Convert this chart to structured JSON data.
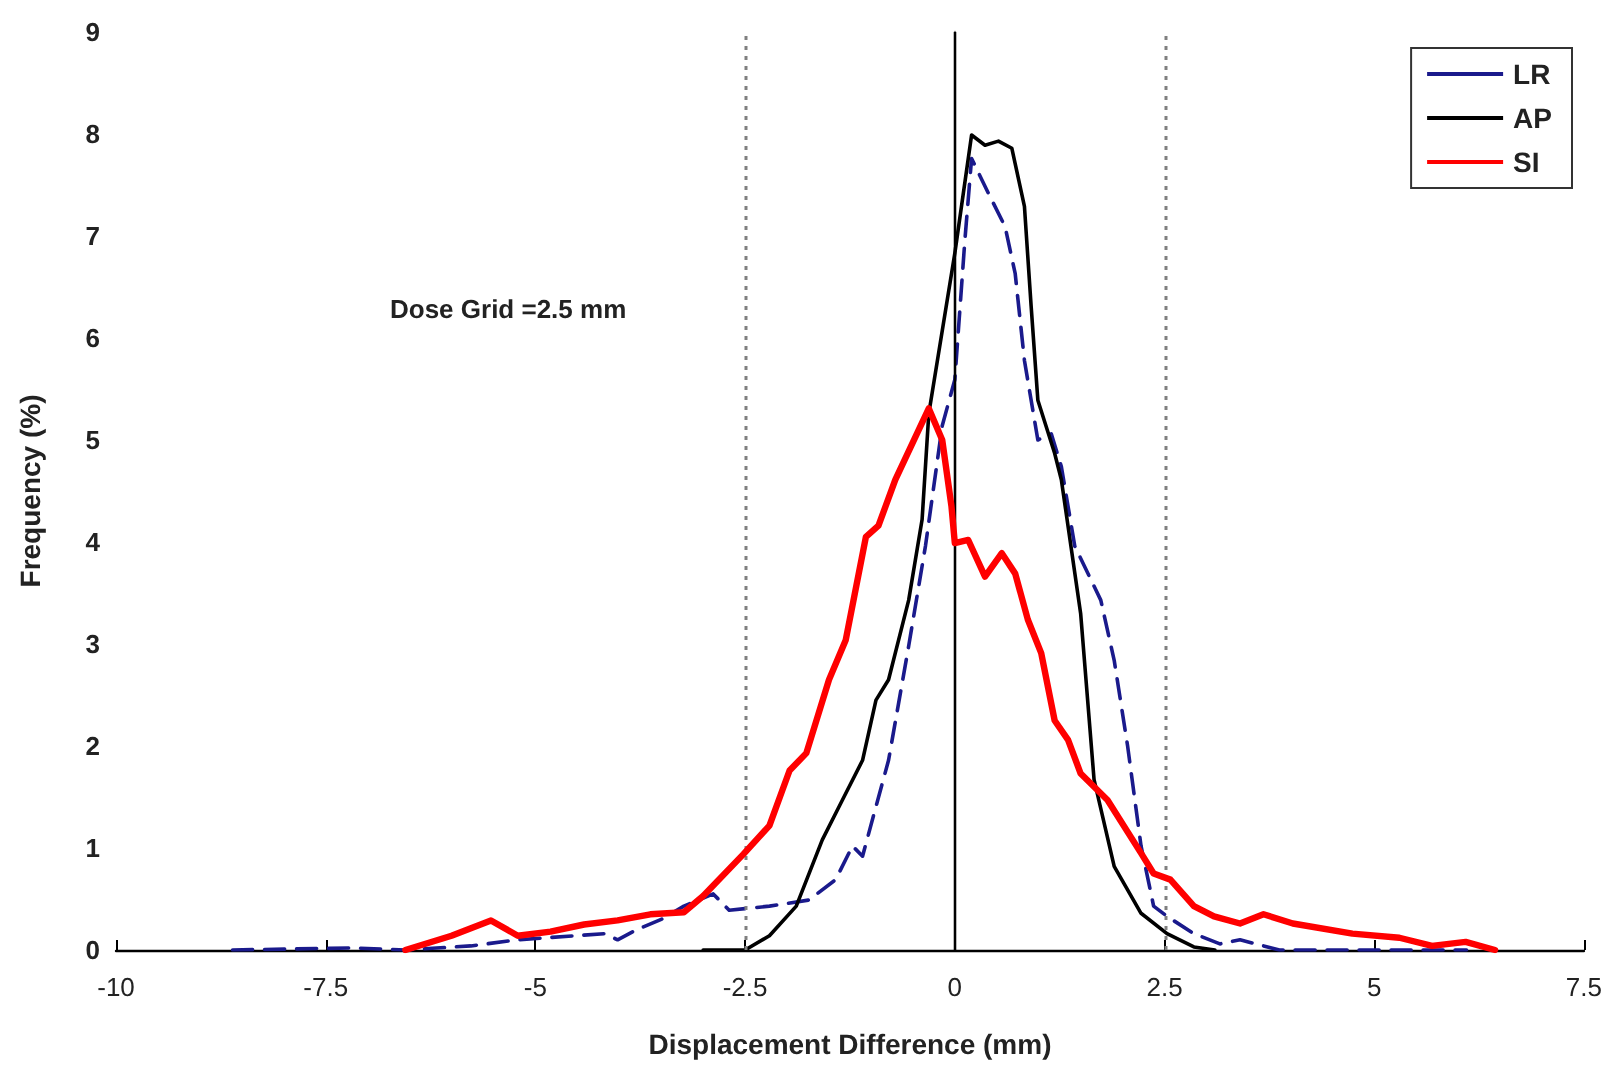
{
  "chart_data": {
    "type": "line",
    "xlabel": "Displacement Difference (mm)",
    "ylabel": "Frequency (%)",
    "xlim": [
      -10,
      7.5
    ],
    "xticks": [
      -10,
      -7.5,
      -5,
      -2.5,
      0,
      2.5,
      5,
      7.5
    ],
    "ylim": [
      0,
      9
    ],
    "yticks": [
      0,
      1,
      2,
      3,
      4,
      5,
      6,
      7,
      8,
      9
    ],
    "grid": false,
    "legend": "top right",
    "marker": "none",
    "annotations": [
      "Dose Grid =2.5 mm"
    ],
    "ref_lines": [
      {
        "axis": "x",
        "value": -2.5,
        "color": "#808080",
        "line_style": "dotted"
      },
      {
        "axis": "x",
        "value": 2.5,
        "color": "#808080",
        "line_style": "dotted"
      },
      {
        "axis": "x",
        "value": 0,
        "color": "#000000",
        "line_style": "solid"
      }
    ],
    "series": [
      {
        "name": "LR",
        "color": "#1a1a8c",
        "line_style": "dashed",
        "x": [
          -8.61,
          -7.18,
          -6.55,
          -5.77,
          -5.21,
          -4.18,
          -4.02,
          -3.79,
          -3.5,
          -3.23,
          -2.88,
          -2.69,
          -2.21,
          -1.74,
          -1.42,
          -1.22,
          -1.1,
          -0.79,
          -0.55,
          -0.35,
          -0.15,
          0.0,
          0.12,
          0.2,
          0.4,
          0.6,
          0.72,
          0.83,
          0.99,
          1.15,
          1.27,
          1.43,
          1.74,
          1.9,
          2.06,
          2.22,
          2.37,
          2.53,
          2.85,
          3.16,
          3.4,
          3.87,
          6.1
        ],
        "values": [
          0,
          0.02,
          0,
          0.04,
          0.1,
          0.16,
          0.1,
          0.2,
          0.3,
          0.43,
          0.55,
          0.39,
          0.43,
          0.49,
          0.69,
          1.02,
          0.92,
          1.86,
          2.98,
          3.96,
          5.14,
          5.59,
          6.96,
          7.76,
          7.42,
          7.09,
          6.63,
          5.78,
          5.0,
          5.06,
          4.74,
          3.96,
          3.43,
          2.84,
          2.0,
          1.02,
          0.43,
          0.33,
          0.16,
          0.06,
          0.1,
          0,
          0
        ]
      },
      {
        "name": "AP",
        "color": "#000000",
        "line_style": "solid",
        "x": [
          -3.0,
          -2.5,
          -2.21,
          -1.89,
          -1.58,
          -1.34,
          -1.1,
          -0.94,
          -0.79,
          -0.55,
          -0.39,
          -0.31,
          0.0,
          0.2,
          0.36,
          0.52,
          0.68,
          0.83,
          0.91,
          0.99,
          1.19,
          1.27,
          1.5,
          1.66,
          1.9,
          2.22,
          2.53,
          2.85,
          3.1
        ],
        "values": [
          0,
          0,
          0.14,
          0.43,
          1.08,
          1.47,
          1.86,
          2.45,
          2.65,
          3.43,
          4.22,
          5.26,
          6.83,
          7.99,
          7.89,
          7.93,
          7.86,
          7.29,
          6.31,
          5.39,
          4.87,
          4.61,
          3.3,
          1.67,
          0.82,
          0.36,
          0.16,
          0.03,
          0
        ]
      },
      {
        "name": "SI",
        "color": "#ff0000",
        "line_style": "solid",
        "x": [
          -6.55,
          -6.0,
          -5.53,
          -5.21,
          -4.82,
          -4.42,
          -4.02,
          -3.63,
          -3.23,
          -3.0,
          -2.52,
          -2.21,
          -1.97,
          -1.77,
          -1.5,
          -1.3,
          -1.06,
          -0.91,
          -0.71,
          -0.31,
          -0.15,
          -0.04,
          0.0,
          0.16,
          0.36,
          0.56,
          0.72,
          0.87,
          1.03,
          1.19,
          1.35,
          1.5,
          1.82,
          2.22,
          2.37,
          2.57,
          2.85,
          3.09,
          3.4,
          3.68,
          4.03,
          4.74,
          5.3,
          5.69,
          6.09,
          6.44
        ],
        "values": [
          0,
          0.14,
          0.29,
          0.14,
          0.18,
          0.25,
          0.29,
          0.35,
          0.37,
          0.53,
          0.94,
          1.22,
          1.76,
          1.93,
          2.65,
          3.04,
          4.05,
          4.16,
          4.61,
          5.31,
          5.0,
          4.35,
          3.99,
          4.02,
          3.66,
          3.89,
          3.69,
          3.24,
          2.91,
          2.25,
          2.06,
          1.73,
          1.47,
          0.95,
          0.75,
          0.69,
          0.43,
          0.33,
          0.26,
          0.35,
          0.26,
          0.16,
          0.12,
          0.04,
          0.08,
          0
        ]
      }
    ]
  }
}
